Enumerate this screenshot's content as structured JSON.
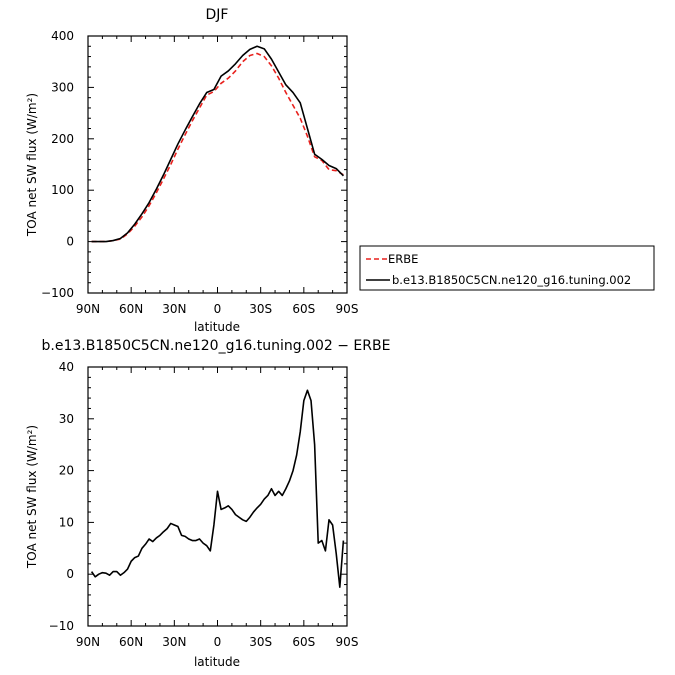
{
  "chart_data": [
    {
      "type": "line",
      "title": "DJF",
      "xlabel": "latitude",
      "ylabel": "TOA net SW flux (W/m²)",
      "xlim": [
        -90,
        90
      ],
      "ylim": [
        -100,
        400
      ],
      "x_ticks": [
        -90,
        -60,
        -30,
        0,
        30,
        60,
        90
      ],
      "x_tick_labels": [
        "90N",
        "60N",
        "30N",
        "0",
        "30S",
        "60S",
        "90S"
      ],
      "y_ticks": [
        -100,
        0,
        100,
        200,
        300,
        400
      ],
      "y_tick_labels": [
        "−100",
        "0",
        "100",
        "200",
        "300",
        "400"
      ],
      "legend_position": "right-outside",
      "series": [
        {
          "name": "ERBE",
          "color": "#e8211d",
          "dash": "dashed",
          "x": [
            -87.5,
            -82.5,
            -77.5,
            -72.5,
            -67.5,
            -62.5,
            -57.5,
            -52.5,
            -47.5,
            -42.5,
            -37.5,
            -32.5,
            -27.5,
            -22.5,
            -17.5,
            -12.5,
            -7.5,
            -2.5,
            2.5,
            7.5,
            12.5,
            17.5,
            22.5,
            27.5,
            32.5,
            37.5,
            42.5,
            47.5,
            52.5,
            57.5,
            62.5,
            67.5,
            72.5,
            77.5,
            82.5,
            87.5
          ],
          "y": [
            0,
            0,
            0,
            2,
            5,
            15,
            30,
            48,
            70,
            95,
            122,
            150,
            180,
            208,
            235,
            260,
            285,
            292,
            308,
            318,
            332,
            350,
            362,
            366,
            360,
            342,
            318,
            290,
            265,
            240,
            205,
            165,
            158,
            140,
            138,
            130
          ]
        },
        {
          "name": "b.e13.B1850C5CN.ne120_g16.tuning.002",
          "color": "#000000",
          "dash": "solid",
          "x": [
            -87.5,
            -82.5,
            -77.5,
            -72.5,
            -67.5,
            -62.5,
            -57.5,
            -52.5,
            -47.5,
            -42.5,
            -37.5,
            -32.5,
            -27.5,
            -22.5,
            -17.5,
            -12.5,
            -7.5,
            -2.5,
            2.5,
            7.5,
            12.5,
            17.5,
            22.5,
            27.5,
            32.5,
            37.5,
            42.5,
            47.5,
            52.5,
            57.5,
            62.5,
            67.5,
            72.5,
            77.5,
            82.5,
            87.5
          ],
          "y": [
            0,
            0,
            0,
            2,
            6,
            17,
            34,
            54,
            76,
            102,
            130,
            160,
            190,
            217,
            243,
            268,
            290,
            296,
            322,
            332,
            346,
            362,
            374,
            380,
            375,
            355,
            330,
            305,
            290,
            270,
            220,
            170,
            160,
            148,
            142,
            128
          ]
        }
      ]
    },
    {
      "type": "line",
      "title": "b.e13.B1850C5CN.ne120_g16.tuning.002 − ERBE",
      "xlabel": "latitude",
      "ylabel": "TOA net SW flux (W/m²)",
      "xlim": [
        -90,
        90
      ],
      "ylim": [
        -10,
        40
      ],
      "x_ticks": [
        -90,
        -60,
        -30,
        0,
        30,
        60,
        90
      ],
      "x_tick_labels": [
        "90N",
        "60N",
        "30N",
        "0",
        "30S",
        "60S",
        "90S"
      ],
      "y_ticks": [
        -10,
        0,
        10,
        20,
        30,
        40
      ],
      "y_tick_labels": [
        "−10",
        "0",
        "10",
        "20",
        "30",
        "40"
      ],
      "series": [
        {
          "color": "#000000",
          "dash": "solid",
          "x": [
            -87.5,
            -85,
            -82.5,
            -80,
            -77.5,
            -75,
            -72.5,
            -70,
            -67.5,
            -65,
            -62.5,
            -60,
            -57.5,
            -55,
            -52.5,
            -50,
            -47.5,
            -45,
            -42.5,
            -40,
            -37.5,
            -35,
            -32.5,
            -30,
            -27.5,
            -25,
            -22.5,
            -20,
            -17.5,
            -15,
            -12.5,
            -10,
            -7.5,
            -5,
            -2.5,
            0,
            2.5,
            5,
            7.5,
            10,
            12.5,
            15,
            17.5,
            20,
            22.5,
            25,
            27.5,
            30,
            32.5,
            35,
            37.5,
            40,
            42.5,
            45,
            47.5,
            50,
            52.5,
            55,
            57.5,
            60,
            62.5,
            65,
            67.5,
            70,
            72.5,
            75,
            77.5,
            80,
            82.5,
            85,
            87.5
          ],
          "y": [
            0.5,
            -0.5,
            0,
            0.3,
            0.2,
            -0.2,
            0.5,
            0.5,
            -0.2,
            0.3,
            1.0,
            2.5,
            3.2,
            3.5,
            5.0,
            5.8,
            6.8,
            6.3,
            7.0,
            7.5,
            8.2,
            8.8,
            9.8,
            9.5,
            9.2,
            7.5,
            7.3,
            6.8,
            6.5,
            6.5,
            6.8,
            6.0,
            5.5,
            4.5,
            9.5,
            16.0,
            12.5,
            12.8,
            13.2,
            12.5,
            11.5,
            11.0,
            10.5,
            10.2,
            11.0,
            12.0,
            12.8,
            13.5,
            14.5,
            15.2,
            16.5,
            15.2,
            16.0,
            15.2,
            16.5,
            18.0,
            20.0,
            23.0,
            27.5,
            33.5,
            35.5,
            33.5,
            25.0,
            6.0,
            6.5,
            4.5,
            10.5,
            9.5,
            4.0,
            -2.5,
            6.5
          ]
        }
      ]
    }
  ]
}
